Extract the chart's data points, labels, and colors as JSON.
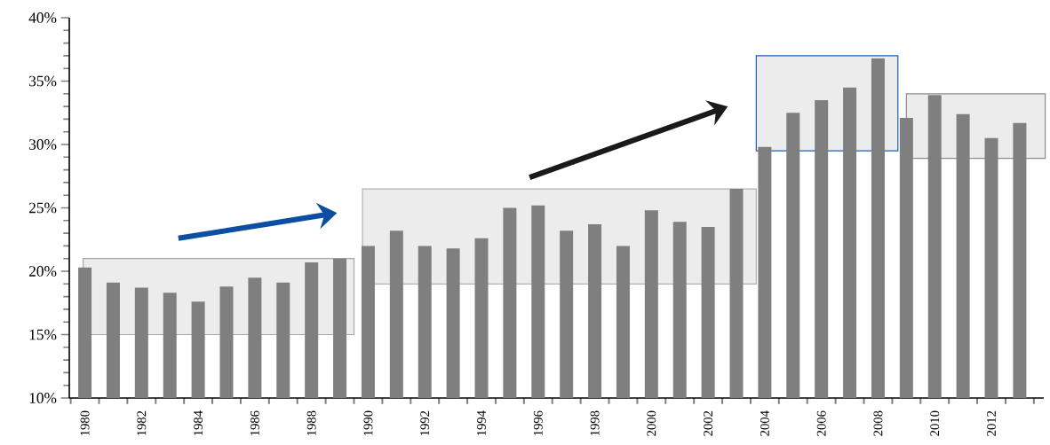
{
  "chart_data": {
    "type": "bar",
    "categories": [
      "1980",
      null,
      "1982",
      null,
      "1984",
      null,
      "1986",
      null,
      "1988",
      null,
      "1990",
      null,
      "1992",
      null,
      "1994",
      null,
      "1996",
      null,
      "1998",
      null,
      "2000",
      null,
      "2002",
      null,
      "2004",
      null,
      "2006",
      null,
      "2008",
      null,
      "2010",
      null,
      "2012",
      null
    ],
    "values": [
      20.3,
      19.1,
      18.7,
      18.3,
      17.6,
      18.8,
      19.5,
      19.1,
      20.7,
      21.0,
      22.0,
      23.2,
      22.0,
      21.8,
      22.6,
      25.0,
      25.2,
      23.2,
      23.7,
      22.0,
      24.8,
      23.9,
      23.5,
      26.5,
      29.8,
      32.5,
      33.5,
      34.5,
      36.8,
      32.1,
      33.9,
      32.4,
      30.5,
      31.7
    ],
    "color": "#7f7f80",
    "ylim": [
      10,
      40
    ],
    "yticks": [
      {
        "value": 10,
        "label": "10%"
      },
      {
        "value": 11,
        "label": null
      },
      {
        "value": 12,
        "label": null
      },
      {
        "value": 13,
        "label": null
      },
      {
        "value": 14,
        "label": null
      },
      {
        "value": 15,
        "label": "15%"
      },
      {
        "value": 16,
        "label": null
      },
      {
        "value": 17,
        "label": null
      },
      {
        "value": 18,
        "label": null
      },
      {
        "value": 19,
        "label": null
      },
      {
        "value": 20,
        "label": "20%"
      },
      {
        "value": 21,
        "label": null
      },
      {
        "value": 22,
        "label": null
      },
      {
        "value": 23,
        "label": null
      },
      {
        "value": 24,
        "label": null
      },
      {
        "value": 25,
        "label": "25%"
      },
      {
        "value": 26,
        "label": null
      },
      {
        "value": 27,
        "label": null
      },
      {
        "value": 28,
        "label": null
      },
      {
        "value": 29,
        "label": null
      },
      {
        "value": 30,
        "label": "30%"
      },
      {
        "value": 31,
        "label": null
      },
      {
        "value": 32,
        "label": null
      },
      {
        "value": 33,
        "label": null
      },
      {
        "value": 34,
        "label": null
      },
      {
        "value": 35,
        "label": "35%"
      },
      {
        "value": 36,
        "label": null
      },
      {
        "value": 37,
        "label": null
      },
      {
        "value": 38,
        "label": null
      },
      {
        "value": 39,
        "label": null
      },
      {
        "value": 40,
        "label": "40%"
      }
    ]
  }
}
